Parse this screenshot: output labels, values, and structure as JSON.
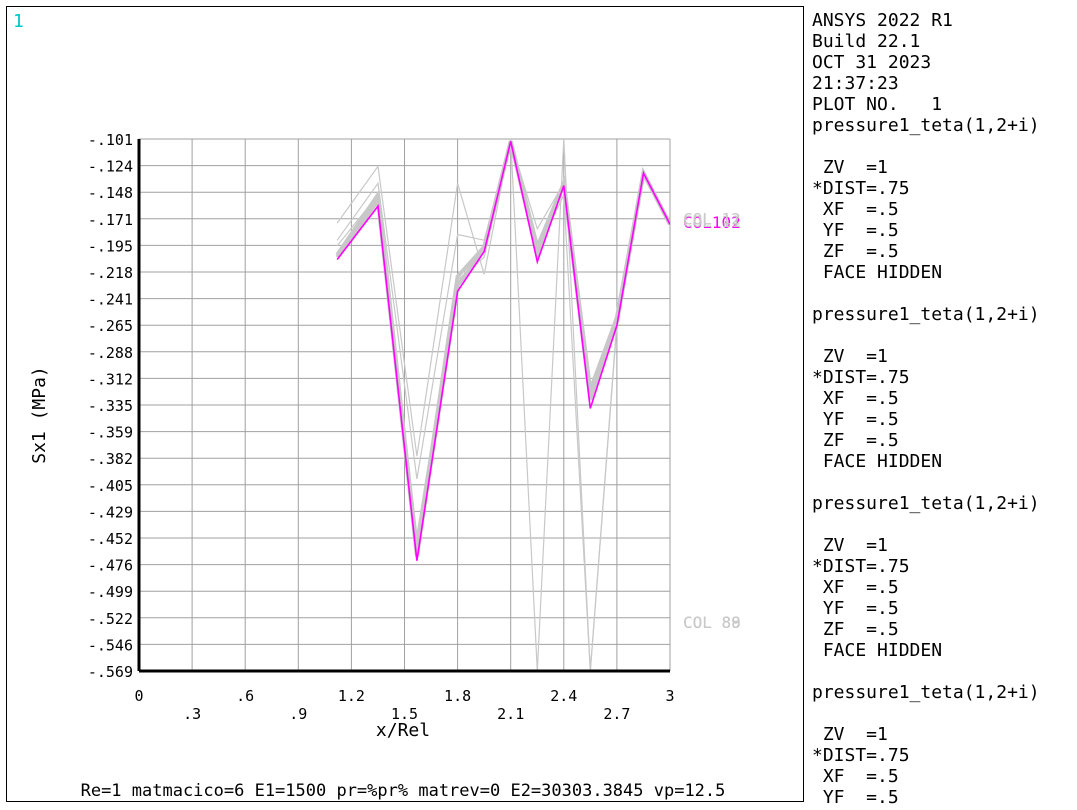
{
  "window_number": "1",
  "footer": "Re=1 matmacico=6 E1=1500 pr=%pr% matrev=0 E2=30303.3845 vp=12.5",
  "side_panel": {
    "header_lines": [
      "ANSYS 2022 R1",
      "Build 22.1",
      "OCT 31 2023",
      "21:37:23",
      "PLOT NO.   1"
    ],
    "blocks": [
      {
        "title": "pressure1_teta(1,2+i)",
        "lines": [
          " ZV  =1",
          "*DIST=.75",
          " XF  =.5",
          " YF  =.5",
          " ZF  =.5",
          " FACE HIDDEN"
        ]
      },
      {
        "title": "pressure1_teta(1,2+i)",
        "lines": [
          " ZV  =1",
          "*DIST=.75",
          " XF  =.5",
          " YF  =.5",
          " ZF  =.5",
          " FACE HIDDEN"
        ]
      },
      {
        "title": "pressure1_teta(1,2+i)",
        "lines": [
          " ZV  =1",
          "*DIST=.75",
          " XF  =.5",
          " YF  =.5",
          " ZF  =.5",
          " FACE HIDDEN"
        ]
      },
      {
        "title": "pressure1_teta(1,2+i)",
        "lines": [
          " ZV  =1",
          "*DIST=.75",
          " XF  =.5",
          " YF  =.5"
        ]
      }
    ]
  },
  "chart_data": {
    "type": "line",
    "xlabel": "x/Rel",
    "ylabel": "Sx1 (MPa)",
    "xlim": [
      0,
      3
    ],
    "ylim": [
      -0.569,
      -0.101
    ],
    "x_ticks": [
      "0",
      ".3",
      ".6",
      ".9",
      "1.2",
      "1.5",
      "1.8",
      "2.1",
      "2.4",
      "2.7",
      "3"
    ],
    "y_ticks": [
      "-.101",
      "-.124",
      "-.148",
      "-.171",
      "-.195",
      "-.218",
      "-.241",
      "-.265",
      "-.288",
      "-.312",
      "-.335",
      "-.359",
      "-.382",
      "-.405",
      "-.429",
      "-.452",
      "-.476",
      "-.499",
      "-.522",
      "-.546",
      "-.569"
    ],
    "grid": true,
    "colors": {
      "highlight": "#ff00ff",
      "background_series": "#c8c8c8",
      "label_magenta": "#ff00ff",
      "label_gray": "#c8c8c8",
      "window_number": "#00c8c8"
    },
    "highlight_series": {
      "name": "COL102",
      "x": [
        1.12,
        1.35,
        1.57,
        1.8,
        1.95,
        2.1,
        2.25,
        2.4,
        2.55,
        2.7,
        2.85,
        3.0
      ],
      "y": [
        -0.207,
        -0.16,
        -0.472,
        -0.235,
        -0.2,
        -0.103,
        -0.209,
        -0.142,
        -0.338,
        -0.265,
        -0.131,
        -0.176
      ]
    },
    "background_series": [
      {
        "x": [
          1.12,
          1.35,
          1.57,
          1.8,
          1.95,
          2.1,
          2.25,
          2.4,
          2.55,
          2.7,
          2.85,
          3.0
        ],
        "y": [
          -0.205,
          -0.155,
          -0.468,
          -0.23,
          -0.198,
          -0.103,
          -0.202,
          -0.14,
          -0.33,
          -0.262,
          -0.131,
          -0.176
        ]
      },
      {
        "x": [
          1.12,
          1.35,
          1.57,
          1.8,
          1.95,
          2.1,
          2.25,
          2.4,
          2.55,
          2.7,
          2.85,
          3.0
        ],
        "y": [
          -0.203,
          -0.15,
          -0.465,
          -0.222,
          -0.196,
          -0.103,
          -0.196,
          -0.14,
          -0.322,
          -0.258,
          -0.131,
          -0.176
        ]
      },
      {
        "x": [
          1.12,
          1.35,
          1.57,
          1.8,
          1.95,
          2.1,
          2.25,
          2.4,
          2.55,
          2.7,
          2.85,
          3.0
        ],
        "y": [
          -0.19,
          -0.14,
          -0.4,
          -0.185,
          -0.19,
          -0.103,
          -0.18,
          -0.14,
          -0.32,
          -0.255,
          -0.131,
          -0.176
        ]
      },
      {
        "x": [
          1.12,
          1.35,
          1.57,
          1.8,
          1.95,
          2.1,
          2.25,
          2.4,
          2.55,
          2.7,
          2.85,
          3.0
        ],
        "y": [
          -0.175,
          -0.125,
          -0.38,
          -0.14,
          -0.22,
          -0.101,
          -0.569,
          -0.101,
          -0.569,
          -0.262,
          -0.131,
          -0.176
        ]
      },
      {
        "x": [
          1.12,
          1.35,
          1.57,
          1.8,
          1.95,
          2.1,
          2.25,
          2.4,
          2.55,
          2.7,
          2.85,
          3.0
        ],
        "y": [
          -0.195,
          -0.15,
          -0.45,
          -0.225,
          -0.205,
          -0.101,
          -0.2,
          -0.15,
          -0.569,
          -0.265,
          -0.131,
          -0.176
        ]
      }
    ],
    "series_labels": [
      {
        "text": "COL102",
        "color": "magenta",
        "at_y": -0.174
      },
      {
        "text": "COL 12",
        "color": "gray",
        "at_y": -0.171
      },
      {
        "text": "COL 11",
        "color": "gray",
        "at_y": -0.173
      },
      {
        "text": "COL 88",
        "color": "gray",
        "at_y": -0.526
      },
      {
        "text": "COL 89",
        "color": "gray",
        "at_y": -0.526
      }
    ]
  }
}
